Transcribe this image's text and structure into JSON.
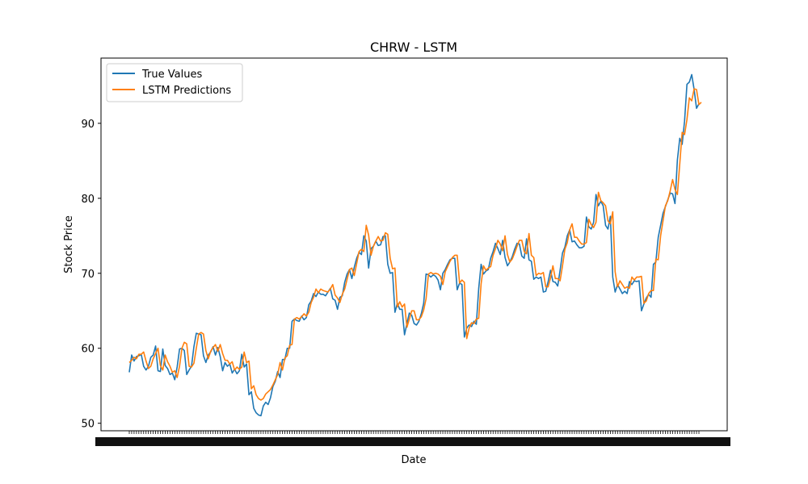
{
  "chart_data": {
    "type": "line",
    "title": "CHRW - LSTM",
    "xlabel": "Date",
    "ylabel": "Stock Price",
    "ylim": [
      49.0,
      98.7
    ],
    "yticks": [
      50,
      60,
      70,
      80,
      90
    ],
    "grid": false,
    "legend_position": "top-left",
    "x_tick_labels_note": "x tick labels are dense overlapping dates, unreadable",
    "series": [
      {
        "name": "True Values",
        "color": "#1f77b4",
        "values": [
          56.8,
          59.1,
          58.3,
          58.9,
          59.0,
          59.2,
          57.6,
          57.1,
          57.6,
          58.8,
          59.1,
          60.3,
          57.0,
          56.9,
          59.9,
          57.7,
          57.3,
          56.5,
          56.7,
          55.8,
          57.5,
          59.9,
          60.0,
          59.7,
          56.5,
          57.1,
          57.6,
          60.2,
          62.0,
          61.9,
          61.8,
          59.0,
          58.1,
          59.1,
          59.5,
          60.2,
          59.1,
          60.1,
          58.9,
          57.0,
          58.1,
          57.6,
          57.9,
          56.7,
          57.2,
          56.6,
          57.0,
          59.2,
          57.5,
          57.9,
          53.8,
          54.2,
          52.0,
          51.4,
          51.1,
          51.0,
          52.3,
          52.8,
          52.5,
          53.4,
          54.9,
          55.6,
          56.9,
          56.1,
          58.5,
          58.5,
          60.0,
          60.0,
          63.6,
          63.9,
          63.7,
          63.6,
          64.3,
          63.8,
          64.1,
          65.8,
          66.3,
          67.3,
          66.9,
          67.5,
          67.2,
          67.2,
          67.0,
          67.5,
          68.0,
          66.6,
          66.4,
          65.2,
          66.8,
          67.0,
          68.8,
          69.9,
          70.5,
          69.3,
          70.8,
          72.0,
          72.8,
          72.5,
          75.0,
          74.3,
          70.7,
          73.3,
          73.6,
          74.3,
          73.7,
          73.8,
          74.9,
          75.0,
          71.2,
          70.0,
          70.1,
          64.8,
          66.0,
          65.2,
          65.2,
          61.8,
          63.3,
          64.7,
          64.4,
          63.3,
          63.1,
          63.6,
          64.6,
          66.0,
          69.9,
          69.8,
          69.5,
          69.8,
          69.6,
          69.1,
          67.8,
          70.0,
          70.5,
          71.2,
          71.8,
          72.0,
          72.0,
          67.8,
          68.7,
          68.5,
          61.5,
          62.7,
          63.1,
          62.9,
          63.6,
          63.2,
          68.0,
          71.2,
          69.9,
          70.3,
          70.5,
          72.0,
          72.9,
          74.0,
          73.3,
          72.5,
          74.4,
          72.1,
          71.0,
          71.5,
          72.2,
          73.2,
          74.0,
          73.9,
          72.3,
          72.0,
          74.6,
          71.8,
          71.6,
          69.2,
          69.5,
          69.3,
          69.5,
          67.5,
          67.6,
          68.9,
          70.4,
          68.9,
          68.8,
          68.3,
          70.4,
          72.7,
          73.5,
          75.0,
          75.8,
          74.2,
          74.3,
          73.8,
          73.4,
          73.4,
          73.6,
          77.5,
          76.2,
          75.9,
          76.8,
          80.5,
          79.0,
          79.6,
          79.0,
          76.4,
          75.9,
          77.6,
          69.5,
          67.5,
          68.5,
          67.9,
          67.3,
          67.6,
          67.3,
          68.9,
          68.5,
          69.0,
          68.9,
          69.0,
          65.0,
          65.9,
          66.7,
          67.2,
          66.8,
          71.2,
          71.5,
          74.8,
          76.4,
          78.0,
          78.9,
          79.8,
          80.7,
          80.6,
          79.3,
          85.1,
          88.0,
          87.2,
          90.3,
          95.2,
          95.5,
          96.5,
          94.5,
          92.0,
          92.6
        ]
      },
      {
        "name": "LSTM Predictions",
        "color": "#ff7f0e",
        "values": [
          58.1,
          58.4,
          58.8,
          58.6,
          59.2,
          59.2,
          59.5,
          58.3,
          57.3,
          57.6,
          58.6,
          59.3,
          60.0,
          57.7,
          57.1,
          59.1,
          58.2,
          57.6,
          56.8,
          57.0,
          56.1,
          57.6,
          60.0,
          60.8,
          60.6,
          57.6,
          57.5,
          58.0,
          60.0,
          61.9,
          62.1,
          61.9,
          59.7,
          58.6,
          59.6,
          60.1,
          60.5,
          59.6,
          60.5,
          59.3,
          58.4,
          58.4,
          57.9,
          58.2,
          57.1,
          57.5,
          57.2,
          57.5,
          59.5,
          58.1,
          58.3,
          54.6,
          55.0,
          53.8,
          53.3,
          53.1,
          53.3,
          53.9,
          54.2,
          54.5,
          55.1,
          55.8,
          56.5,
          58.1,
          57.1,
          58.7,
          59.0,
          60.4,
          60.5,
          63.9,
          64.1,
          63.9,
          64.2,
          64.6,
          64.3,
          64.8,
          66.1,
          66.8,
          67.9,
          67.4,
          67.9,
          67.7,
          67.6,
          67.5,
          67.9,
          68.5,
          67.1,
          66.7,
          66.1,
          67.2,
          67.9,
          69.2,
          70.5,
          70.7,
          69.7,
          71.3,
          72.9,
          73.2,
          72.9,
          76.4,
          75.1,
          72.4,
          73.6,
          74.3,
          74.9,
          74.3,
          74.4,
          75.4,
          75.2,
          72.0,
          70.6,
          70.7,
          65.5,
          66.2,
          65.5,
          65.9,
          62.8,
          63.9,
          65.0,
          65.0,
          63.8,
          63.8,
          64.2,
          65.1,
          66.6,
          69.9,
          70.1,
          69.9,
          70.0,
          69.9,
          69.6,
          68.5,
          70.2,
          70.9,
          71.6,
          72.1,
          72.4,
          72.4,
          68.7,
          69.1,
          68.8,
          61.3,
          62.7,
          63.4,
          63.3,
          63.9,
          64.0,
          68.6,
          71.0,
          70.4,
          70.7,
          70.9,
          72.4,
          73.3,
          74.4,
          73.9,
          73.0,
          75.0,
          72.5,
          71.5,
          71.9,
          72.7,
          73.6,
          74.4,
          74.4,
          72.9,
          72.6,
          75.3,
          72.4,
          72.1,
          69.7,
          70.0,
          69.9,
          70.1,
          68.2,
          68.2,
          69.4,
          71.0,
          69.3,
          69.3,
          69.0,
          71.0,
          73.2,
          74.1,
          75.8,
          76.6,
          74.8,
          74.8,
          74.3,
          73.9,
          73.9,
          74.1,
          77.2,
          76.5,
          76.1,
          76.8,
          80.8,
          79.7,
          79.4,
          79.0,
          77.0,
          76.6,
          78.2,
          70.2,
          68.2,
          69.0,
          68.5,
          68.0,
          68.2,
          68.0,
          69.5,
          69.1,
          69.5,
          69.5,
          69.6,
          66.0,
          66.3,
          67.3,
          67.7,
          67.7,
          71.9,
          71.8,
          75.0,
          77.0,
          79.0,
          79.7,
          81.0,
          82.5,
          81.2,
          80.5,
          84.6,
          88.8,
          88.5,
          90.5,
          93.4,
          93.0,
          94.6,
          94.5,
          92.5,
          92.8
        ]
      }
    ]
  }
}
